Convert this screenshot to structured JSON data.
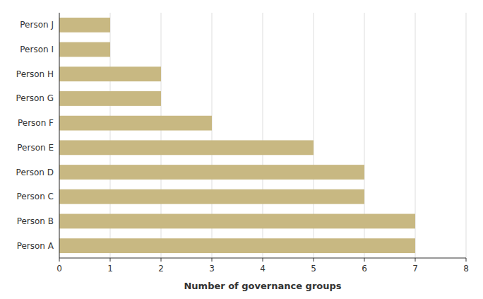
{
  "chart_data": {
    "type": "bar",
    "orientation": "horizontal",
    "categories": [
      "Person A",
      "Person B",
      "Person C",
      "Person D",
      "Person E",
      "Person F",
      "Person G",
      "Person H",
      "Person I",
      "Person J"
    ],
    "values": [
      7,
      7,
      6,
      6,
      5,
      3,
      2,
      2,
      1,
      1
    ],
    "color": "#C8B882",
    "xlabel": "Number of governance groups",
    "xlim": [
      0,
      8
    ],
    "xticks": [
      0,
      1,
      2,
      3,
      4,
      5,
      6,
      7,
      8
    ],
    "grid": true
  }
}
